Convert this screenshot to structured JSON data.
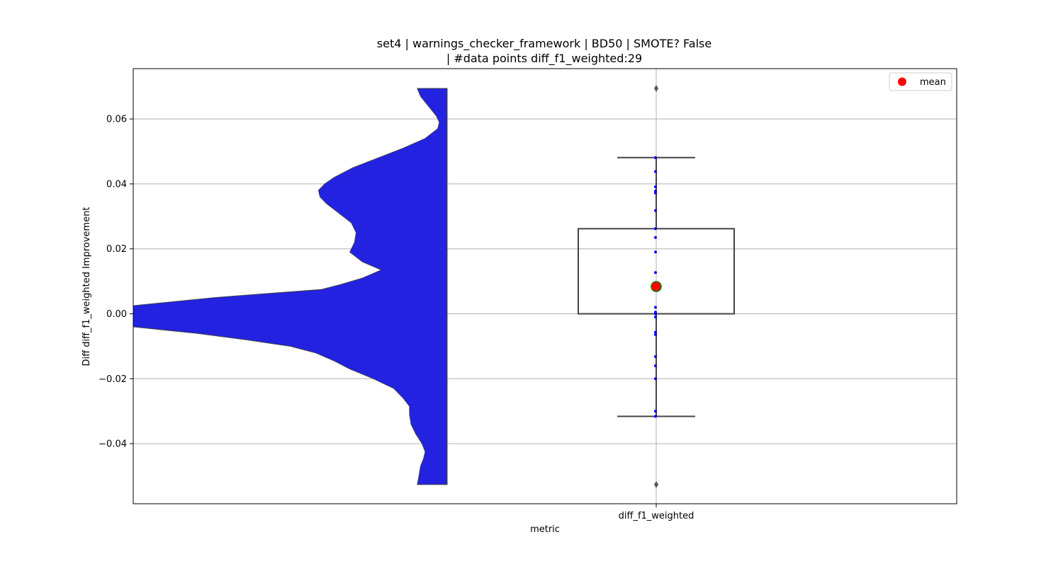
{
  "chart_data": {
    "type": "violin+box",
    "title_line1": "set4 | warnings_checker_framework | BD50 | SMOTE? False",
    "title_line2": "| #data points diff_f1_weighted:29",
    "xlabel": "metric",
    "ylabel": "Diff diff_f1_weighted Improvement",
    "categories": [
      "diff_f1_weighted"
    ],
    "ylim": [
      -0.0585,
      0.0755
    ],
    "yticks": [
      -0.04,
      -0.02,
      0.0,
      0.02,
      0.04,
      0.06
    ],
    "ytick_labels": [
      "−0.04",
      "−0.02",
      "0.00",
      "0.02",
      "0.04",
      "0.06"
    ],
    "grid": true,
    "legend": {
      "placement": "top-right",
      "entries": [
        {
          "label": "mean",
          "color": "#ff0000"
        }
      ]
    },
    "colors": {
      "violin": "#2222e0",
      "box": "#444444",
      "mean_fill": "#ff0000",
      "mean_edge": "#008000",
      "points": "#0000ff",
      "fliers": "#555555"
    },
    "violin": {
      "y_range": [
        -0.0526,
        0.0694
      ],
      "density_profile": [
        [
          -0.0526,
          0.095
        ],
        [
          -0.05,
          0.09
        ],
        [
          -0.047,
          0.085
        ],
        [
          -0.0445,
          0.075
        ],
        [
          -0.0425,
          0.07
        ],
        [
          -0.04,
          0.08
        ],
        [
          -0.037,
          0.1
        ],
        [
          -0.034,
          0.115
        ],
        [
          -0.031,
          0.12
        ],
        [
          -0.0285,
          0.12
        ],
        [
          -0.026,
          0.14
        ],
        [
          -0.023,
          0.17
        ],
        [
          -0.02,
          0.235
        ],
        [
          -0.017,
          0.31
        ],
        [
          -0.0145,
          0.36
        ],
        [
          -0.012,
          0.42
        ],
        [
          -0.01,
          0.5
        ],
        [
          -0.008,
          0.64
        ],
        [
          -0.006,
          0.8
        ],
        [
          -0.004,
          1.0
        ],
        [
          0.0,
          1.0
        ],
        [
          0.0025,
          1.0
        ],
        [
          0.005,
          0.74
        ],
        [
          0.0075,
          0.4
        ],
        [
          0.009,
          0.34
        ],
        [
          0.011,
          0.27
        ],
        [
          0.0135,
          0.21
        ],
        [
          0.016,
          0.27
        ],
        [
          0.019,
          0.31
        ],
        [
          0.022,
          0.295
        ],
        [
          0.025,
          0.29
        ],
        [
          0.028,
          0.305
        ],
        [
          0.031,
          0.345
        ],
        [
          0.034,
          0.385
        ],
        [
          0.036,
          0.405
        ],
        [
          0.038,
          0.41
        ],
        [
          0.04,
          0.39
        ],
        [
          0.042,
          0.36
        ],
        [
          0.045,
          0.3
        ],
        [
          0.048,
          0.22
        ],
        [
          0.051,
          0.14
        ],
        [
          0.054,
          0.07
        ],
        [
          0.057,
          0.03
        ],
        [
          0.059,
          0.025
        ],
        [
          0.061,
          0.035
        ],
        [
          0.064,
          0.06
        ],
        [
          0.067,
          0.085
        ],
        [
          0.0694,
          0.095
        ]
      ]
    },
    "box": {
      "q1": 0.0,
      "median": 0.0,
      "q3": 0.0262,
      "whisker_low": -0.0316,
      "whisker_high": 0.0481,
      "mean": 0.0084,
      "fliers": [
        0.0694,
        -0.0526
      ]
    },
    "points": [
      0.0481,
      0.0438,
      0.0391,
      0.0378,
      0.0372,
      0.0318,
      0.0262,
      0.0235,
      0.019,
      0.0127,
      0.008,
      0.002,
      0.0005,
      0.0,
      -0.001,
      -0.0057,
      -0.0064,
      -0.0132,
      -0.016,
      -0.02,
      -0.03,
      -0.0316
    ]
  }
}
